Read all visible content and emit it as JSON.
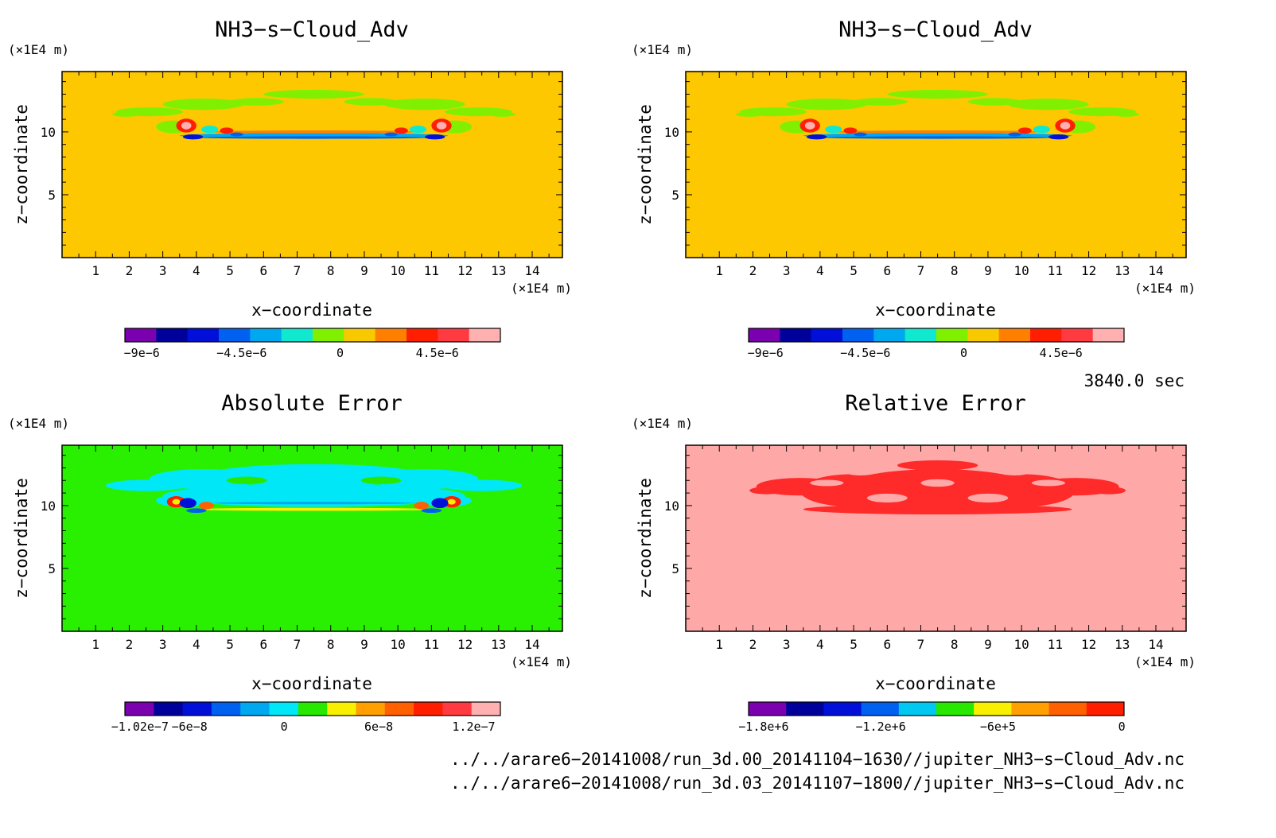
{
  "panels": [
    {
      "title": "NH3−s−Cloud_Adv",
      "xlabel": "x−coordinate",
      "ylabel": "z−coordinate",
      "x_unit": "(×1E4 m)",
      "y_unit": "(×1E4 m)",
      "colorbar": {
        "colors": [
          "#7a00b0",
          "#00009a",
          "#0010d8",
          "#0060f0",
          "#00a8f0",
          "#10e8d0",
          "#80f000",
          "#f8c800",
          "#ff8000",
          "#ff1e00",
          "#ff3a40",
          "#ffb0b0"
        ],
        "labels": [
          "−9e−6",
          "−4.5e−6",
          "0",
          "4.5e−6"
        ]
      }
    },
    {
      "title": "NH3−s−Cloud_Adv",
      "xlabel": "x−coordinate",
      "ylabel": "z−coordinate",
      "x_unit": "(×1E4 m)",
      "y_unit": "(×1E4 m)",
      "colorbar": {
        "colors": [
          "#7a00b0",
          "#00009a",
          "#0010d8",
          "#0060f0",
          "#00a8f0",
          "#10e8d0",
          "#80f000",
          "#f8c800",
          "#ff8000",
          "#ff1e00",
          "#ff3a40",
          "#ffb0b0"
        ],
        "labels": [
          "−9e−6",
          "−4.5e−6",
          "0",
          "4.5e−6"
        ]
      }
    },
    {
      "title": "Absolute Error",
      "xlabel": "x−coordinate",
      "ylabel": "z−coordinate",
      "x_unit": "(×1E4 m)",
      "y_unit": "(×1E4 m)",
      "colorbar": {
        "colors": [
          "#7a00b0",
          "#00009a",
          "#0010d8",
          "#0060f0",
          "#00a8f0",
          "#00e8f8",
          "#28e800",
          "#f8f000",
          "#ffa000",
          "#ff6000",
          "#ff1e00",
          "#ff3a40",
          "#ffb0b0"
        ],
        "labels": [
          "−1.02e−7",
          "−6e−8",
          "0",
          "6e−8",
          "1.2e−7"
        ]
      }
    },
    {
      "title": "Relative Error",
      "xlabel": "x−coordinate",
      "ylabel": "z−coordinate",
      "x_unit": "(×1E4 m)",
      "y_unit": "(×1E4 m)",
      "colorbar": {
        "colors": [
          "#7a00b0",
          "#00009a",
          "#0010d8",
          "#0060f0",
          "#00c8f0",
          "#28e800",
          "#f8f000",
          "#ffa000",
          "#ff6000",
          "#ff1e00"
        ],
        "labels": [
          "−1.8e+6",
          "−1.2e+6",
          "−6e+5",
          "0"
        ]
      }
    }
  ],
  "time_label": "3840.0 sec",
  "file_paths": [
    "../../arare6−20141008/run_3d.00_20141104−1630//jupiter_NH3−s−Cloud_Adv.nc",
    "../../arare6−20141008/run_3d.03_20141107−1800//jupiter_NH3−s−Cloud_Adv.nc"
  ],
  "colors": {
    "field_background": "#fdc800",
    "abs_error_background": "#28f000",
    "rel_error_background": "#ffa8a8"
  },
  "chart_data": [
    {
      "type": "heatmap",
      "title": "NH3−s−Cloud_Adv",
      "xlabel": "x−coordinate",
      "ylabel": "z−coordinate",
      "xlim": [
        0,
        14.9
      ],
      "ylim": [
        0,
        14.8
      ],
      "x_ticks": [
        1,
        2,
        3,
        4,
        5,
        6,
        7,
        8,
        9,
        10,
        11,
        12,
        13,
        14
      ],
      "y_ticks": [
        5,
        10
      ],
      "colorbar_labels": [
        "−9e−6",
        "−4.5e−6",
        "0",
        "4.5e−6"
      ],
      "colorbar_range": [
        -9.9e-06,
        9.9e-06
      ],
      "background_value": 0
    },
    {
      "type": "heatmap",
      "title": "NH3−s−Cloud_Adv",
      "xlabel": "x−coordinate",
      "ylabel": "z−coordinate",
      "xlim": [
        0,
        14.9
      ],
      "ylim": [
        0,
        14.8
      ],
      "x_ticks": [
        1,
        2,
        3,
        4,
        5,
        6,
        7,
        8,
        9,
        10,
        11,
        12,
        13,
        14
      ],
      "y_ticks": [
        5,
        10
      ],
      "colorbar_labels": [
        "−9e−6",
        "−4.5e−6",
        "0",
        "4.5e−6"
      ],
      "colorbar_range": [
        -9.9e-06,
        9.9e-06
      ],
      "background_value": 0
    },
    {
      "type": "heatmap",
      "title": "Absolute Error",
      "xlabel": "x−coordinate",
      "ylabel": "z−coordinate",
      "xlim": [
        0,
        14.9
      ],
      "ylim": [
        0,
        14.8
      ],
      "x_ticks": [
        1,
        2,
        3,
        4,
        5,
        6,
        7,
        8,
        9,
        10,
        11,
        12,
        13,
        14
      ],
      "y_ticks": [
        5,
        10
      ],
      "colorbar_labels": [
        "−1.02e−7",
        "−6e−8",
        "0",
        "6e−8",
        "1.2e−7"
      ],
      "colorbar_range": [
        -1.02e-07,
        1.56e-07
      ],
      "background_value": 0
    },
    {
      "type": "heatmap",
      "title": "Relative Error",
      "xlabel": "x−coordinate",
      "ylabel": "z−coordinate",
      "xlim": [
        0,
        14.9
      ],
      "ylim": [
        0,
        14.8
      ],
      "x_ticks": [
        1,
        2,
        3,
        4,
        5,
        6,
        7,
        8,
        9,
        10,
        11,
        12,
        13,
        14
      ],
      "y_ticks": [
        5,
        10
      ],
      "colorbar_labels": [
        "−1.8e+6",
        "−1.2e+6",
        "−6e+5",
        "0"
      ],
      "colorbar_range": [
        -1800000.0,
        0
      ],
      "background_value": 0
    }
  ]
}
